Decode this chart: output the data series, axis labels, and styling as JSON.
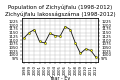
{
  "title": "Population of Zichyújfalu (1998-2012)",
  "subtitle": "Zichyújfalu lakosságszáma (1998-2012)",
  "xlabel": "Year - Év",
  "years": [
    1998,
    1999,
    2000,
    2001,
    2002,
    2003,
    2004,
    2005,
    2006,
    2007,
    2008,
    2009,
    2010,
    2011,
    2012
  ],
  "population": [
    1115,
    1150,
    1170,
    1090,
    1080,
    1145,
    1130,
    1125,
    1190,
    1170,
    1080,
    1010,
    1040,
    1030,
    985
  ],
  "line_color": "#111111",
  "marker_color": "#ffff00",
  "marker_edge_color": "#111111",
  "background_color": "#ffffff",
  "grid_color": "#bbbbbb",
  "ylim_left": [
    950,
    1250
  ],
  "yticks_left": [
    975,
    1000,
    1025,
    1050,
    1075,
    1100,
    1125,
    1150,
    1175,
    1200,
    1225
  ],
  "title_fontsize": 4.0,
  "subtitle_fontsize": 3.2,
  "label_fontsize": 3.5,
  "tick_fontsize": 2.8
}
